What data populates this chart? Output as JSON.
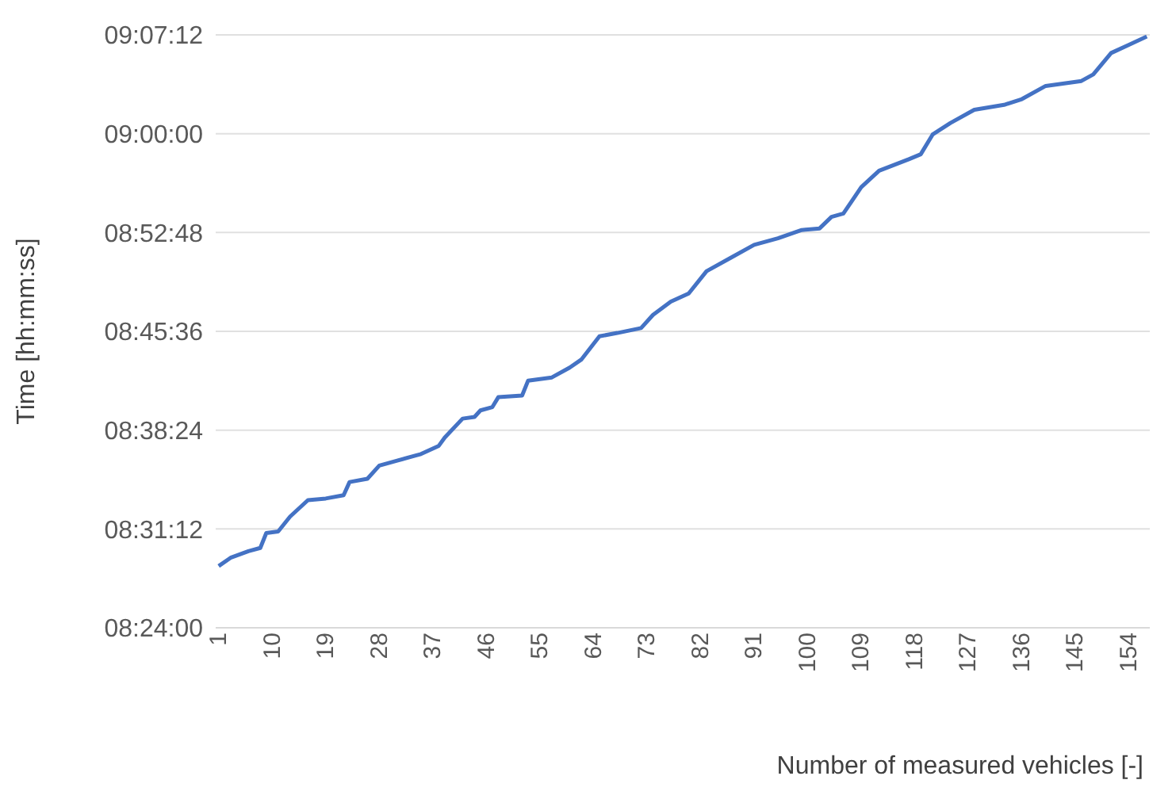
{
  "chart_data": {
    "type": "line",
    "xlabel": "Number of measured vehicles [-]",
    "ylabel": "Time [hh:mm:ss]",
    "x": [
      1,
      3,
      6,
      8,
      9,
      11,
      13,
      16,
      19,
      22,
      23,
      26,
      28,
      31,
      34,
      35,
      38,
      39,
      42,
      44,
      45,
      47,
      48,
      52,
      53,
      57,
      60,
      62,
      65,
      68,
      72,
      74,
      77,
      80,
      83,
      87,
      91,
      95,
      99,
      102,
      104,
      106,
      109,
      112,
      117,
      119,
      121,
      124,
      128,
      133,
      136,
      140,
      146,
      148,
      151,
      154,
      157
    ],
    "series": [
      {
        "color": "#4472c4",
        "values": [
          8.475,
          8.485,
          8.493,
          8.497,
          8.515,
          8.517,
          8.535,
          8.555,
          8.557,
          8.561,
          8.577,
          8.581,
          8.597,
          8.603,
          8.609,
          8.611,
          8.621,
          8.631,
          8.654,
          8.656,
          8.664,
          8.668,
          8.68,
          8.682,
          8.7,
          8.704,
          8.716,
          8.726,
          8.754,
          8.758,
          8.764,
          8.78,
          8.796,
          8.806,
          8.833,
          8.849,
          8.865,
          8.873,
          8.883,
          8.885,
          8.899,
          8.903,
          8.935,
          8.955,
          8.969,
          8.975,
          8.999,
          9.013,
          9.029,
          9.035,
          9.042,
          9.058,
          9.064,
          9.072,
          9.098,
          9.108,
          9.118
        ]
      }
    ],
    "xlim": [
      0.5,
      157.5
    ],
    "xticks": [
      1,
      10,
      19,
      28,
      37,
      46,
      55,
      64,
      73,
      82,
      91,
      100,
      109,
      118,
      127,
      136,
      145,
      154
    ],
    "ylim": [
      8.4,
      9.12
    ],
    "yticks": [
      {
        "value": 8.4,
        "label": "08:24:00"
      },
      {
        "value": 8.52,
        "label": "08:31:12"
      },
      {
        "value": 8.64,
        "label": "08:38:24"
      },
      {
        "value": 8.76,
        "label": "08:45:36"
      },
      {
        "value": 8.88,
        "label": "08:52:48"
      },
      {
        "value": 9.0,
        "label": "09:00:00"
      },
      {
        "value": 9.12,
        "label": "09:07:12"
      }
    ],
    "grid": "y",
    "legend": false,
    "marker": "none",
    "line_style": "solid"
  }
}
